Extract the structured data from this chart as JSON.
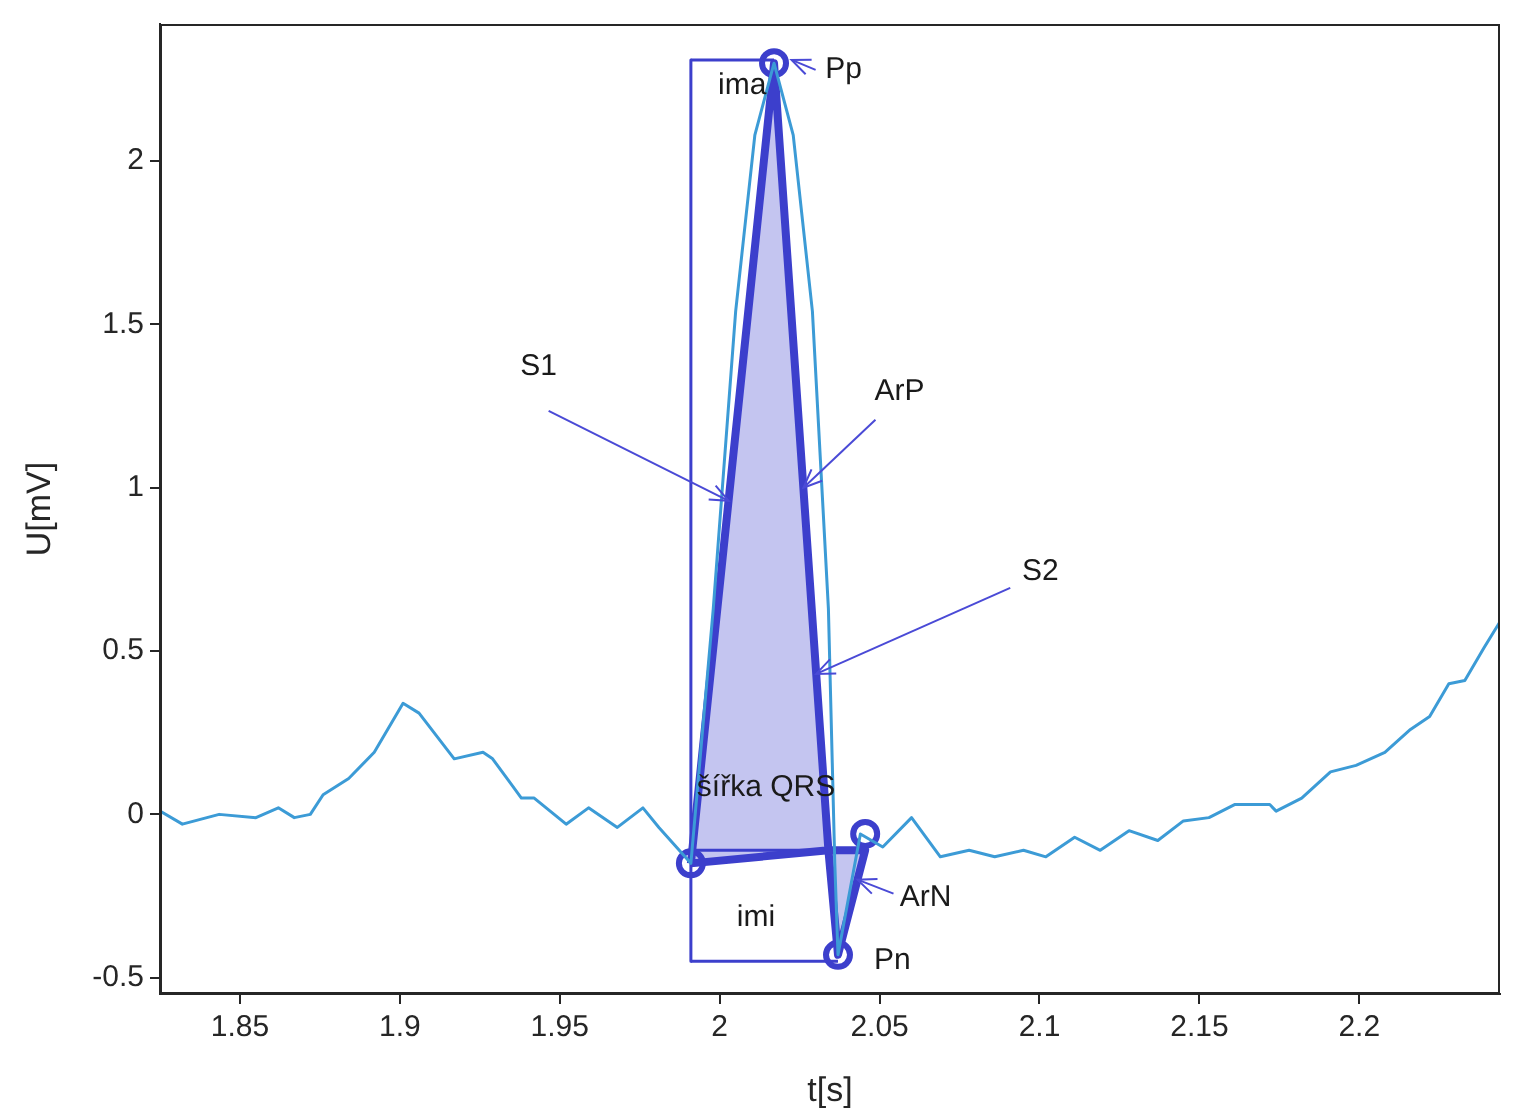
{
  "chart_data": {
    "type": "line",
    "xlabel": "t[s]",
    "ylabel": "U[mV]",
    "xlim": [
      1.825,
      2.244
    ],
    "ylim": [
      -0.55,
      2.42
    ],
    "xticks": [
      1.85,
      1.9,
      1.95,
      2,
      2.05,
      2.1,
      2.15,
      2.2
    ],
    "yticks": [
      -0.5,
      0,
      0.5,
      1,
      1.5,
      2
    ],
    "grid": false,
    "legend": false,
    "series": [
      {
        "type": "line",
        "color": "#3c9bd6",
        "x": [
          1.825,
          1.832,
          1.8435,
          1.855,
          1.862,
          1.867,
          1.872,
          1.876,
          1.884,
          1.892,
          1.901,
          1.906,
          1.917,
          1.926,
          1.929,
          1.938,
          1.942,
          1.952,
          1.959,
          1.968,
          1.976,
          1.981,
          1.991,
          1.998,
          2.005,
          2.011,
          2.017,
          2.023,
          2.029,
          2.034,
          2.036,
          2.037,
          2.044,
          2.051,
          2.06,
          2.069,
          2.078,
          2.086,
          2.095,
          2.102,
          2.111,
          2.119,
          2.128,
          2.137,
          2.145,
          2.153,
          2.161,
          2.172,
          2.174,
          2.182,
          2.191,
          2.199,
          2.208,
          2.216,
          2.222,
          2.228,
          2.233,
          2.239,
          2.244
        ],
        "values": [
          0.01,
          -0.03,
          0,
          -0.01,
          0.02,
          -0.01,
          0,
          0.06,
          0.11,
          0.19,
          0.34,
          0.31,
          0.17,
          0.19,
          0.17,
          0.05,
          0.05,
          -0.03,
          0.02,
          -0.04,
          0.02,
          -0.04,
          -0.15,
          0.63,
          1.54,
          2.08,
          2.3,
          2.08,
          1.54,
          0.63,
          -0.15,
          -0.43,
          -0.06,
          -0.1,
          -0.01,
          -0.13,
          -0.11,
          -0.13,
          -0.11,
          -0.13,
          -0.07,
          -0.11,
          -0.05,
          -0.08,
          -0.02,
          -0.01,
          0.03,
          0.03,
          0.01,
          0.05,
          0.13,
          0.15,
          0.19,
          0.26,
          0.3,
          0.4,
          0.41,
          0.51,
          0.59
        ]
      },
      {
        "type": "area",
        "color": "#3c3fcc",
        "x": [
          1.991,
          2.017,
          2.034,
          1.991
        ],
        "values": [
          -0.15,
          2.3,
          -0.11,
          -0.15
        ]
      },
      {
        "type": "area",
        "color": "#3c3fcc",
        "x": [
          2.034,
          2.037,
          2.0455,
          2.034
        ],
        "values": [
          -0.11,
          -0.43,
          -0.11,
          -0.11
        ]
      },
      {
        "type": "line",
        "color": "#3c3fcc",
        "x": [
          1.991,
          1.991
        ],
        "values": [
          2.31,
          -0.45
        ]
      },
      {
        "type": "line",
        "color": "#3c3fcc",
        "x": [
          1.991,
          2.017
        ],
        "values": [
          2.31,
          2.31
        ]
      },
      {
        "type": "line",
        "color": "#3c3fcc",
        "x": [
          1.991,
          2.037
        ],
        "values": [
          -0.45,
          -0.45
        ]
      },
      {
        "type": "line",
        "color": "#3c3fcc",
        "x": [
          1.991,
          2.0455
        ],
        "values": [
          -0.11,
          -0.11
        ]
      },
      {
        "type": "scatter",
        "color": "#3c3fcc",
        "marker": "circle",
        "x": [
          1.991,
          2.017,
          2.037,
          2.0455
        ],
        "values": [
          -0.15,
          2.3,
          -0.43,
          -0.06
        ]
      }
    ],
    "annotations": [
      {
        "text": "Pp",
        "x": 2.0225,
        "y": 2.31
      },
      "ima",
      {
        "text": "S1",
        "x": 2.0028,
        "y": 0.96
      },
      {
        "text": "ArP",
        "x": 2.0262,
        "y": 1.0
      },
      {
        "text": "S2",
        "x": 2.0302,
        "y": 0.43
      },
      "šířka QRS",
      {
        "text": "ArN",
        "x": 2.0431,
        "y": -0.2
      },
      "imi",
      {
        "text": "Pn",
        "x": 2.037,
        "y": -0.43
      }
    ]
  }
}
